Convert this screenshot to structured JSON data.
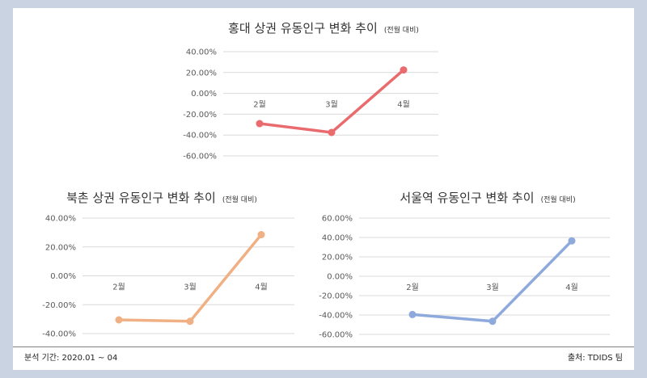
{
  "footer": {
    "period": "분석 기간: 2020.01 ~ 04",
    "source": "출처: TDIDS 팀"
  },
  "chart_data": [
    {
      "type": "line",
      "title": "홍대 상권 유동인구 변화 추이",
      "subtitle": "(전월 대비)",
      "categories": [
        "2월",
        "3월",
        "4월"
      ],
      "series": [
        {
          "values": [
            -29.0,
            -37.5,
            22.5
          ],
          "color": "#e96b6e"
        }
      ],
      "ylim": [
        -60,
        40
      ],
      "yticks": [
        40,
        20,
        0,
        -20,
        -40,
        -60
      ],
      "grid": true
    },
    {
      "type": "line",
      "title": "북촌 상권 유동인구 변화 추이",
      "subtitle": "(전월 대비)",
      "categories": [
        "2월",
        "3월",
        "4월"
      ],
      "series": [
        {
          "values": [
            -30.5,
            -31.5,
            28.5
          ],
          "color": "#f0b083"
        }
      ],
      "ylim": [
        -40,
        40
      ],
      "yticks": [
        40,
        20,
        0,
        -20,
        -40
      ],
      "grid": true
    },
    {
      "type": "line",
      "title": "서울역 유동인구 변화 추이",
      "subtitle": "(전월 대비)",
      "categories": [
        "2월",
        "3월",
        "4월"
      ],
      "series": [
        {
          "values": [
            -39.5,
            -46.5,
            36.5
          ],
          "color": "#8ea9db"
        }
      ],
      "ylim": [
        -60,
        60
      ],
      "yticks": [
        60,
        40,
        20,
        0,
        -20,
        -40,
        -60
      ],
      "grid": true
    }
  ]
}
